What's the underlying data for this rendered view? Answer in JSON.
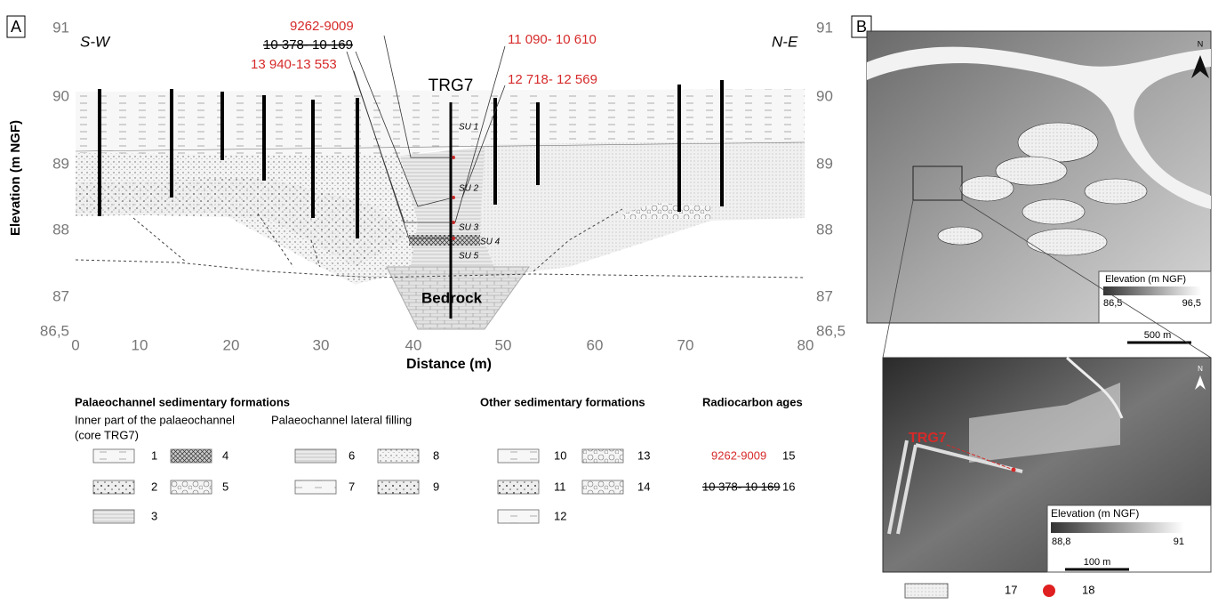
{
  "panel_a": {
    "label": "A",
    "direction_left": "S-W",
    "direction_right": "N-E",
    "y_axis_title": "Elevation (m NGF)",
    "x_axis_title": "Distance (m)",
    "y_ticks": [
      "91",
      "90",
      "89",
      "88",
      "87",
      "86,5"
    ],
    "x_ticks": [
      "0",
      "10",
      "20",
      "30",
      "40",
      "50",
      "60",
      "70",
      "80"
    ],
    "core": "TRG7",
    "units": [
      "SU 1",
      "SU 2",
      "SU 3",
      "SU 4",
      "SU 5"
    ],
    "bedrock": "Bedrock",
    "dates": [
      "9262-9009",
      "10 378- 10 169",
      "13 940-13 553",
      "11 090- 10 610",
      "12 718- 12 569"
    ]
  },
  "legend": {
    "palaeochannel_title": "Palaeochannel sedimentary formations",
    "inner_part": "Inner part of the palaeochannel",
    "inner_part_note": "(core TRG7)",
    "lateral": "Palaeochannel lateral filling",
    "other_title": "Other sedimentary formations",
    "radiocarbon_title": "Radiocarbon ages",
    "items": [
      "1",
      "2",
      "3",
      "4",
      "5",
      "6",
      "7",
      "8",
      "9",
      "10",
      "11",
      "12",
      "13",
      "14",
      "15",
      "16"
    ],
    "radiocarbon_samples": [
      "9262-9009",
      "10 378- 10 169"
    ]
  },
  "panel_b": {
    "label": "B",
    "north": "N",
    "legend_title": "Elevation (m NGF)",
    "min": "86,5",
    "max": "96,5",
    "scale": "500 m",
    "inset": {
      "core": "TRG7",
      "north": "N",
      "legend_title": "Elevation (m NGF)",
      "min": "88,8",
      "max": "91",
      "scale": "100 m"
    },
    "items": [
      "17",
      "18"
    ]
  }
}
